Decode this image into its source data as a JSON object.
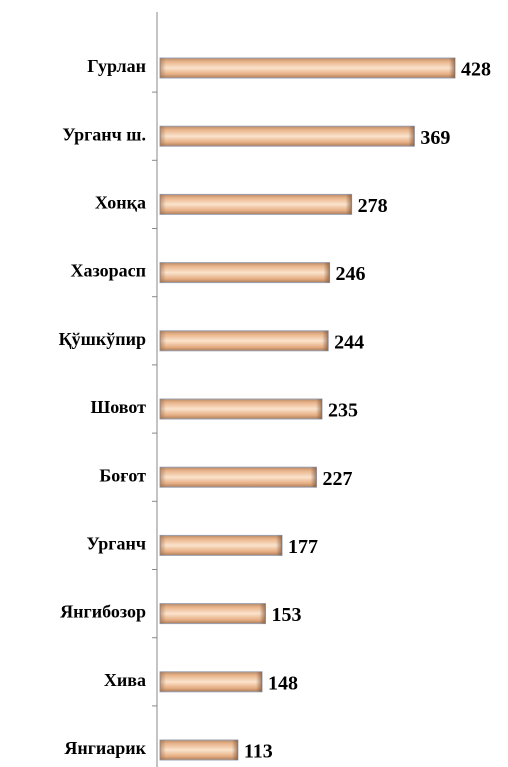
{
  "chart_data": {
    "type": "bar",
    "orientation": "horizontal",
    "categories": [
      "Гурлан",
      "Урганч ш.",
      "Хонқа",
      "Хазорасп",
      "Қўшкўпир",
      "Шовот",
      "Боғот",
      "Урганч",
      "Янгибозор",
      "Хива",
      "Янгиарик"
    ],
    "values": [
      428,
      369,
      278,
      246,
      244,
      235,
      227,
      177,
      153,
      148,
      113
    ],
    "color": "#f2c9a2"
  }
}
